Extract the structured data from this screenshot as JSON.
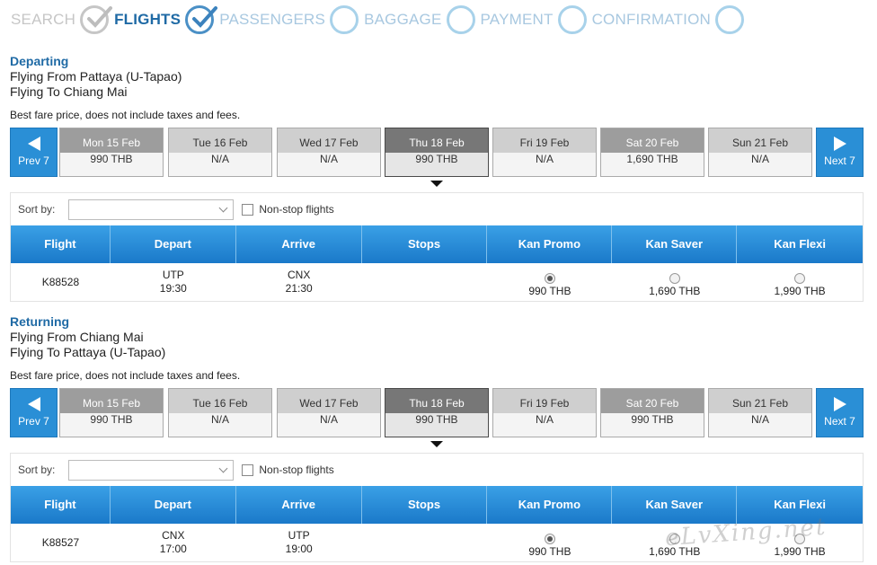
{
  "steps": [
    {
      "label": "SEARCH",
      "state": "done"
    },
    {
      "label": "FLIGHTS",
      "state": "active"
    },
    {
      "label": "PASSENGERS",
      "state": "upcoming"
    },
    {
      "label": "BAGGAGE",
      "state": "upcoming"
    },
    {
      "label": "PAYMENT",
      "state": "upcoming"
    },
    {
      "label": "CONFIRMATION",
      "state": "upcoming"
    }
  ],
  "departing": {
    "title": "Departing",
    "from_line": "Flying From Pattaya (U-Tapao)",
    "to_line": "Flying To Chiang Mai",
    "fare_note": "Best fare price, does not include taxes and fees.",
    "prev_label": "Prev 7",
    "next_label": "Next 7",
    "dates": [
      {
        "day": "Mon 15 Feb",
        "price": "990 THB"
      },
      {
        "day": "Tue 16 Feb",
        "price": "N/A"
      },
      {
        "day": "Wed 17 Feb",
        "price": "N/A"
      },
      {
        "day": "Thu 18 Feb",
        "price": "990 THB"
      },
      {
        "day": "Fri 19 Feb",
        "price": "N/A"
      },
      {
        "day": "Sat 20 Feb",
        "price": "1,690 THB"
      },
      {
        "day": "Sun 21 Feb",
        "price": "N/A"
      }
    ],
    "sort_label": "Sort by:",
    "sort_value": "",
    "nonstop_label": "Non-stop flights",
    "columns": [
      "Flight",
      "Depart",
      "Arrive",
      "Stops",
      "Kan Promo",
      "Kan Saver",
      "Kan Flexi"
    ],
    "flight": {
      "number": "K88528",
      "depart_code": "UTP",
      "depart_time": "19:30",
      "arrive_code": "CNX",
      "arrive_time": "21:30",
      "stops": "",
      "promo_price": "990 THB",
      "saver_price": "1,690 THB",
      "flexi_price": "1,990 THB"
    }
  },
  "returning": {
    "title": "Returning",
    "from_line": "Flying From Chiang Mai",
    "to_line": "Flying To Pattaya (U-Tapao)",
    "fare_note": "Best fare price, does not include taxes and fees.",
    "prev_label": "Prev 7",
    "next_label": "Next 7",
    "dates": [
      {
        "day": "Mon 15 Feb",
        "price": "990 THB"
      },
      {
        "day": "Tue 16 Feb",
        "price": "N/A"
      },
      {
        "day": "Wed 17 Feb",
        "price": "N/A"
      },
      {
        "day": "Thu 18 Feb",
        "price": "990 THB"
      },
      {
        "day": "Fri 19 Feb",
        "price": "N/A"
      },
      {
        "day": "Sat 20 Feb",
        "price": "990 THB"
      },
      {
        "day": "Sun 21 Feb",
        "price": "N/A"
      }
    ],
    "sort_label": "Sort by:",
    "sort_value": "",
    "nonstop_label": "Non-stop flights",
    "columns": [
      "Flight",
      "Depart",
      "Arrive",
      "Stops",
      "Kan Promo",
      "Kan Saver",
      "Kan Flexi"
    ],
    "flight": {
      "number": "K88527",
      "depart_code": "CNX",
      "depart_time": "17:00",
      "arrive_code": "UTP",
      "arrive_time": "19:00",
      "stops": "",
      "promo_price": "990 THB",
      "saver_price": "1,690 THB",
      "flexi_price": "1,990 THB"
    }
  },
  "watermark": "eLvXing.net"
}
